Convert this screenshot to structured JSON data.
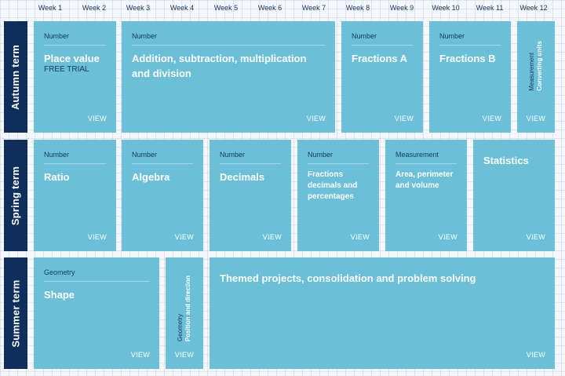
{
  "weeks": [
    "Week 1",
    "Week 2",
    "Week 3",
    "Week 4",
    "Week 5",
    "Week 6",
    "Week 7",
    "Week 8",
    "Week 9",
    "Week 10",
    "Week 11",
    "Week 12"
  ],
  "terms": {
    "autumn": "Autumn term",
    "spring": "Spring term",
    "summer": "Summer term"
  },
  "view_label": "VIEW",
  "autumn": {
    "place_value": {
      "category": "Number",
      "title": "Place value",
      "badge": "FREE TRIAL"
    },
    "addition": {
      "category": "Number",
      "title": "Addition, subtraction, multiplication and division"
    },
    "fractions_a": {
      "category": "Number",
      "title": "Fractions A"
    },
    "fractions_b": {
      "category": "Number",
      "title": "Fractions B"
    },
    "converting_units": {
      "category": "Measurement",
      "title": "Converting units"
    }
  },
  "spring": {
    "ratio": {
      "category": "Number",
      "title": "Ratio"
    },
    "algebra": {
      "category": "Number",
      "title": "Algebra"
    },
    "decimals": {
      "category": "Number",
      "title": "Decimals"
    },
    "fdp": {
      "category": "Number",
      "title": "Fractions decimals and percentages"
    },
    "area": {
      "category": "Measurement",
      "title": "Area, perimeter and volume"
    },
    "statistics": {
      "title": "Statistics"
    }
  },
  "summer": {
    "shape": {
      "category": "Geometry",
      "title": "Shape"
    },
    "position": {
      "category": "Geometry",
      "title": "Position and direction"
    },
    "themed": {
      "title": "Themed projects, consolidation and problem solving"
    }
  }
}
